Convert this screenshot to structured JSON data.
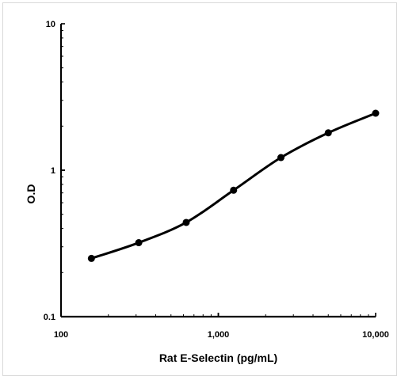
{
  "chart_data": {
    "type": "line",
    "title": "",
    "xlabel": "Rat E-Selectin (pg/mL)",
    "ylabel": "O.D",
    "x_scale": "log",
    "y_scale": "log",
    "xlim": [
      100,
      10000
    ],
    "ylim": [
      0.1,
      10
    ],
    "x_ticks": [
      {
        "value": 100,
        "label": "100"
      },
      {
        "value": 1000,
        "label": "1,000"
      },
      {
        "value": 10000,
        "label": "10,000"
      }
    ],
    "y_ticks": [
      {
        "value": 0.1,
        "label": "0.1"
      },
      {
        "value": 1,
        "label": "1"
      },
      {
        "value": 10,
        "label": "10"
      }
    ],
    "grid": false,
    "legend": "none",
    "series": [
      {
        "color": "#000000",
        "marker": "circle",
        "smooth": true,
        "points": [
          {
            "x": 156,
            "y": 0.25
          },
          {
            "x": 312,
            "y": 0.32
          },
          {
            "x": 625,
            "y": 0.44
          },
          {
            "x": 1250,
            "y": 0.73
          },
          {
            "x": 2500,
            "y": 1.22
          },
          {
            "x": 5000,
            "y": 1.8
          },
          {
            "x": 10000,
            "y": 2.45
          }
        ]
      }
    ]
  }
}
